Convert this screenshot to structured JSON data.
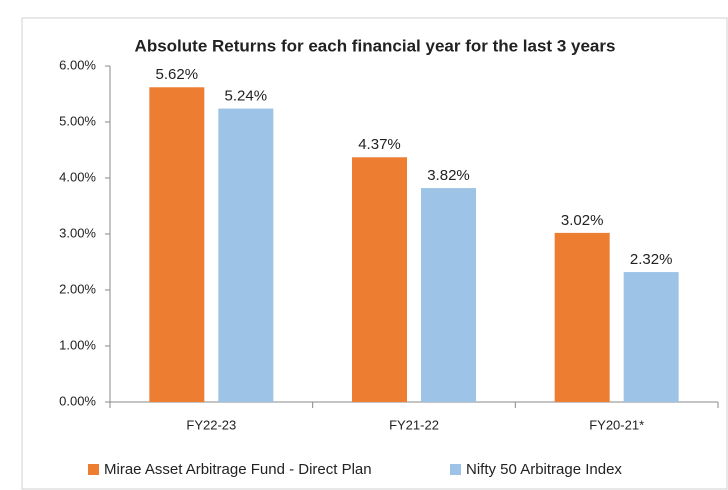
{
  "chart_data": {
    "type": "bar",
    "title": "Absolute Returns for each financial year for the last 3 years",
    "categories": [
      "FY22-23",
      "FY21-22",
      "FY20-21*"
    ],
    "series": [
      {
        "name": "Mirae Asset Arbitrage Fund - Direct Plan",
        "color": "#ED7D31",
        "values": [
          5.62,
          4.37,
          3.02
        ],
        "value_labels": [
          "5.62%",
          "4.37%",
          "3.02%"
        ]
      },
      {
        "name": "Nifty 50 Arbitrage Index",
        "color": "#9DC3E6",
        "values": [
          5.24,
          3.82,
          2.32
        ],
        "value_labels": [
          "5.24%",
          "3.82%",
          "2.32%"
        ]
      }
    ],
    "ylim": [
      0,
      6
    ],
    "yticks": [
      {
        "value": 0,
        "label": "0.00%"
      },
      {
        "value": 1,
        "label": "1.00%"
      },
      {
        "value": 2,
        "label": "2.00%"
      },
      {
        "value": 3,
        "label": "3.00%"
      },
      {
        "value": 4,
        "label": "4.00%"
      },
      {
        "value": 5,
        "label": "5.00%"
      },
      {
        "value": 6,
        "label": "6.00%"
      }
    ],
    "grid": false,
    "legend": "bottom"
  }
}
